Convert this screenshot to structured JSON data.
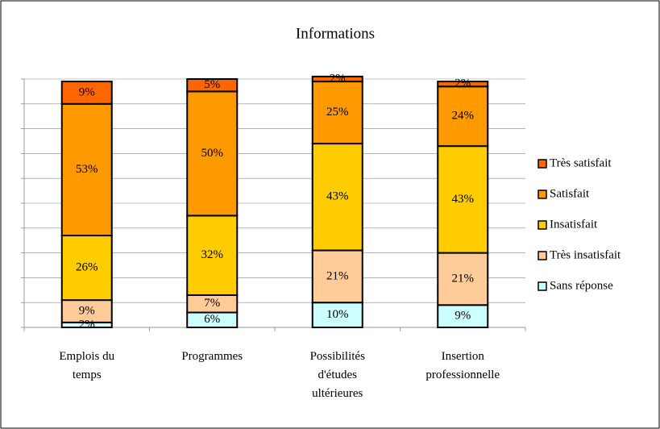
{
  "chart_data": {
    "type": "stacked_bar",
    "title": "Informations",
    "categories": [
      "Emplois du temps",
      "Programmes",
      "Possibilités d'études ultérieures",
      "Insertion professionnelle"
    ],
    "series": [
      {
        "name": "Sans réponse",
        "color": "#ccffff",
        "values": [
          2,
          6,
          10,
          9
        ],
        "value_labels": [
          "2%",
          "6%",
          "10%",
          "9%"
        ]
      },
      {
        "name": "Très insatisfait",
        "color": "#ffcc99",
        "values": [
          9,
          7,
          21,
          21
        ],
        "value_labels": [
          "9%",
          "7%",
          "21%",
          "21%"
        ]
      },
      {
        "name": "Insatisfait",
        "color": "#ffcc00",
        "values": [
          26,
          32,
          43,
          43
        ],
        "value_labels": [
          "26%",
          "32%",
          "43%",
          "43%"
        ]
      },
      {
        "name": "Satisfait",
        "color": "#ff9900",
        "values": [
          53,
          50,
          25,
          24
        ],
        "value_labels": [
          "53%",
          "50%",
          "25%",
          "24%"
        ]
      },
      {
        "name": "Très satisfait",
        "color": "#ff6600",
        "values": [
          9,
          5,
          2,
          2
        ],
        "value_labels": [
          "9%",
          "5%",
          "2%",
          "2%"
        ]
      }
    ],
    "ylim": [
      0,
      100
    ],
    "yticks": [
      0,
      10,
      20,
      30,
      40,
      50,
      60,
      70,
      80,
      90,
      100
    ],
    "grid": true,
    "legend": "right"
  }
}
